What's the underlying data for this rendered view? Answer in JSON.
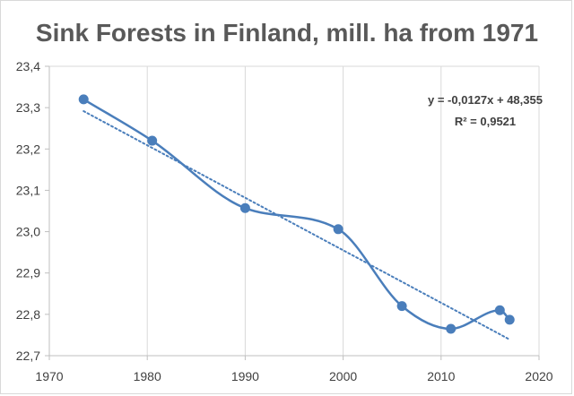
{
  "chart_data": {
    "type": "scatter",
    "title": "Sink Forests in Finland, mill. ha from 1971",
    "xlabel": "",
    "ylabel": "",
    "xlim": [
      1970,
      2020
    ],
    "ylim": [
      22.7,
      23.4
    ],
    "x_ticks": [
      1970,
      1980,
      1990,
      2000,
      2010,
      2020
    ],
    "x_tick_labels": [
      "1970",
      "1980",
      "1990",
      "2000",
      "2010",
      "2020"
    ],
    "y_ticks": [
      22.7,
      22.8,
      22.9,
      23.0,
      23.1,
      23.2,
      23.3,
      23.4
    ],
    "y_tick_labels": [
      "22,7",
      "22,8",
      "22,9",
      "23,0",
      "23,1",
      "23,2",
      "23,3",
      "23,4"
    ],
    "grid": "vertical",
    "series": [
      {
        "name": "Sink forests",
        "style": "smoothed line with markers",
        "color": "#4a7ebb",
        "x": [
          1973.5,
          1980.5,
          1990.0,
          1999.5,
          2006.0,
          2011.0,
          2016.0,
          2017.0
        ],
        "y": [
          23.32,
          23.22,
          23.057,
          23.006,
          22.82,
          22.765,
          22.81,
          22.787
        ]
      }
    ],
    "trendline": {
      "type": "linear",
      "style": "dotted",
      "color": "#4a7ebb",
      "x_range": [
        1973.5,
        2017.0
      ],
      "equation": "y = -0,0127x + 48,355",
      "r_squared": "R² = 0,9521"
    }
  }
}
